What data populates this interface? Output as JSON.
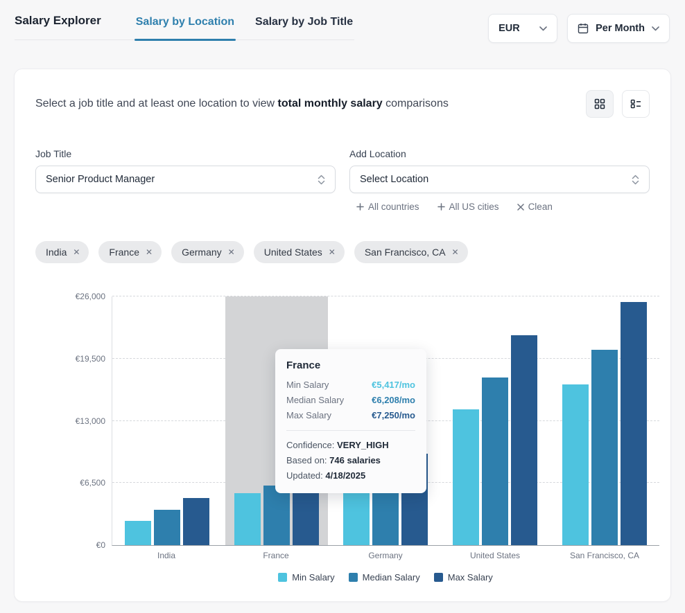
{
  "header": {
    "title": "Salary Explorer",
    "tabs": [
      {
        "label": "Salary by Location",
        "active": true
      },
      {
        "label": "Salary by Job Title",
        "active": false
      }
    ],
    "currency_select": {
      "value": "EUR"
    },
    "period_select": {
      "value": "Per Month"
    }
  },
  "card": {
    "intro": {
      "prefix": "Select a job title and at least one location to view ",
      "bold": "total monthly salary",
      "suffix": " comparisons"
    },
    "job_title": {
      "label": "Job Title",
      "value": "Senior Product Manager"
    },
    "add_location": {
      "label": "Add Location",
      "placeholder": "Select Location"
    },
    "quick_actions": {
      "all_countries": "All countries",
      "all_us_cities": "All US cities",
      "clean": "Clean"
    },
    "selected_locations": [
      "India",
      "France",
      "Germany",
      "United States",
      "San Francisco, CA"
    ]
  },
  "tooltip": {
    "title": "France",
    "rows": [
      {
        "label": "Min Salary",
        "value": "€5,417/mo"
      },
      {
        "label": "Median Salary",
        "value": "€6,208/mo"
      },
      {
        "label": "Max Salary",
        "value": "€7,250/mo"
      }
    ],
    "confidence_label": "Confidence:",
    "confidence_value": "VERY_HIGH",
    "based_on_label": "Based on:",
    "based_on_value": "746 salaries",
    "updated_label": "Updated:",
    "updated_value": "4/18/2025"
  },
  "chart_data": {
    "type": "bar",
    "categories": [
      "India",
      "France",
      "Germany",
      "United States",
      "San Francisco, CA"
    ],
    "series": [
      {
        "name": "Min Salary",
        "color": "#4ec3df",
        "values": [
          2500,
          5417,
          6250,
          14167,
          16833
        ]
      },
      {
        "name": "Median Salary",
        "color": "#2e7fad",
        "values": [
          3667,
          6208,
          7917,
          17500,
          20417
        ]
      },
      {
        "name": "Max Salary",
        "color": "#275a8f",
        "values": [
          4917,
          7250,
          9583,
          21917,
          25417
        ]
      }
    ],
    "ylabel_ticks": [
      "€0",
      "€6,500",
      "€13,000",
      "€19,500",
      "€26,000"
    ],
    "ylim": [
      0,
      26000
    ],
    "highlighted_category": "France",
    "legend_position": "bottom",
    "grid": "dashed-horizontal"
  },
  "colors": {
    "accent": "#2e7fad",
    "min": "#4ec3df",
    "median": "#2e7fad",
    "max": "#275a8f",
    "highlight_band": "#d3d4d6"
  }
}
